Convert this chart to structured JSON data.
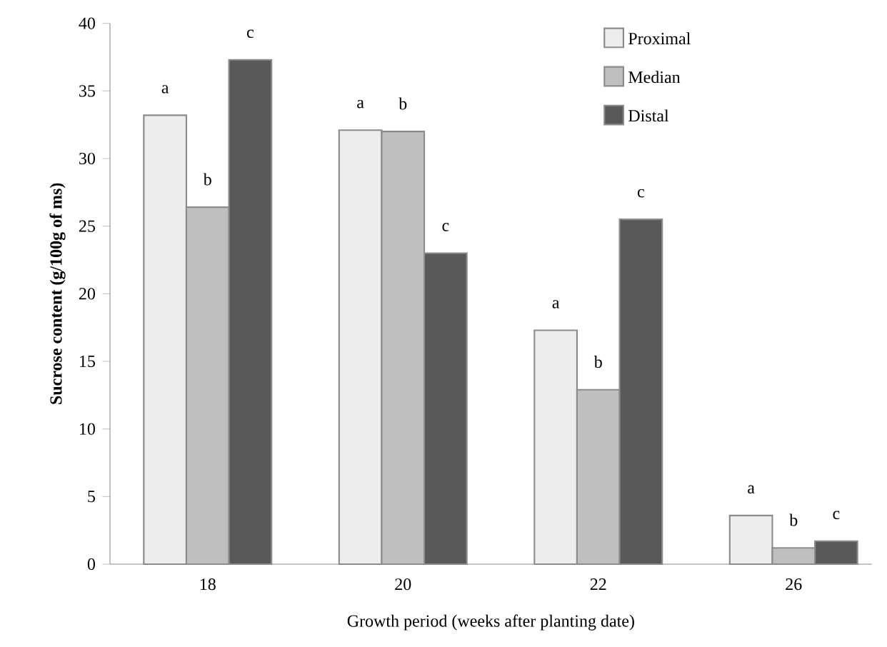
{
  "chart_data": {
    "type": "bar",
    "xlabel": "Growth period (weeks after planting date)",
    "ylabel": "Sucrose content (g/100g of ms)",
    "categories": [
      "18",
      "20",
      "22",
      "26"
    ],
    "series": [
      {
        "name": "Proximal",
        "color": "#ededed",
        "values": [
          33.2,
          32.1,
          17.3,
          3.6
        ],
        "value_labels": [
          "a",
          "a",
          "a",
          "a"
        ]
      },
      {
        "name": "Median",
        "color": "#bfbfbf",
        "values": [
          26.4,
          32.0,
          12.9,
          1.2
        ],
        "value_labels": [
          "b",
          "b",
          "b",
          "b"
        ]
      },
      {
        "name": "Distal",
        "color": "#595959",
        "values": [
          37.3,
          23.0,
          25.5,
          1.7
        ],
        "value_labels": [
          "c",
          "c",
          "c",
          "c"
        ]
      }
    ],
    "ylim": [
      0,
      40
    ],
    "yticks": [
      0,
      5,
      10,
      15,
      20,
      25,
      30,
      35,
      40
    ],
    "legend": "top right",
    "grid": false
  }
}
